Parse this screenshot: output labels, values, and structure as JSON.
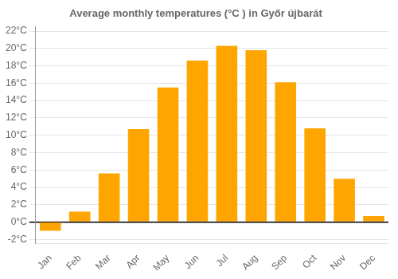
{
  "chart_data": {
    "type": "bar",
    "title": "Average monthly temperatures (°C ) in Győr újbarát",
    "categories": [
      "Jan",
      "Feb",
      "Mar",
      "Apr",
      "May",
      "Jun",
      "Jul",
      "Aug",
      "Sep",
      "Oct",
      "Nov",
      "Dec"
    ],
    "values": [
      -1.0,
      1.2,
      5.6,
      10.7,
      15.5,
      18.6,
      20.3,
      19.8,
      16.1,
      10.8,
      5.0,
      0.7
    ],
    "color": "#FFA500",
    "ylim": [
      -2.5,
      22.5
    ],
    "yticks": [
      {
        "value": -2,
        "label": "-2°C"
      },
      {
        "value": 0,
        "label": "0°C"
      },
      {
        "value": 2,
        "label": "2°C"
      },
      {
        "value": 4,
        "label": "4°C"
      },
      {
        "value": 6,
        "label": "6°C"
      },
      {
        "value": 8,
        "label": "8°C"
      },
      {
        "value": 10,
        "label": "10°C"
      },
      {
        "value": 12,
        "label": "12°C"
      },
      {
        "value": 14,
        "label": "14°C"
      },
      {
        "value": 16,
        "label": "16°C"
      },
      {
        "value": 18,
        "label": "18°C"
      },
      {
        "value": 20,
        "label": "20°C"
      },
      {
        "value": 22,
        "label": "22°C"
      }
    ],
    "grid": true
  }
}
